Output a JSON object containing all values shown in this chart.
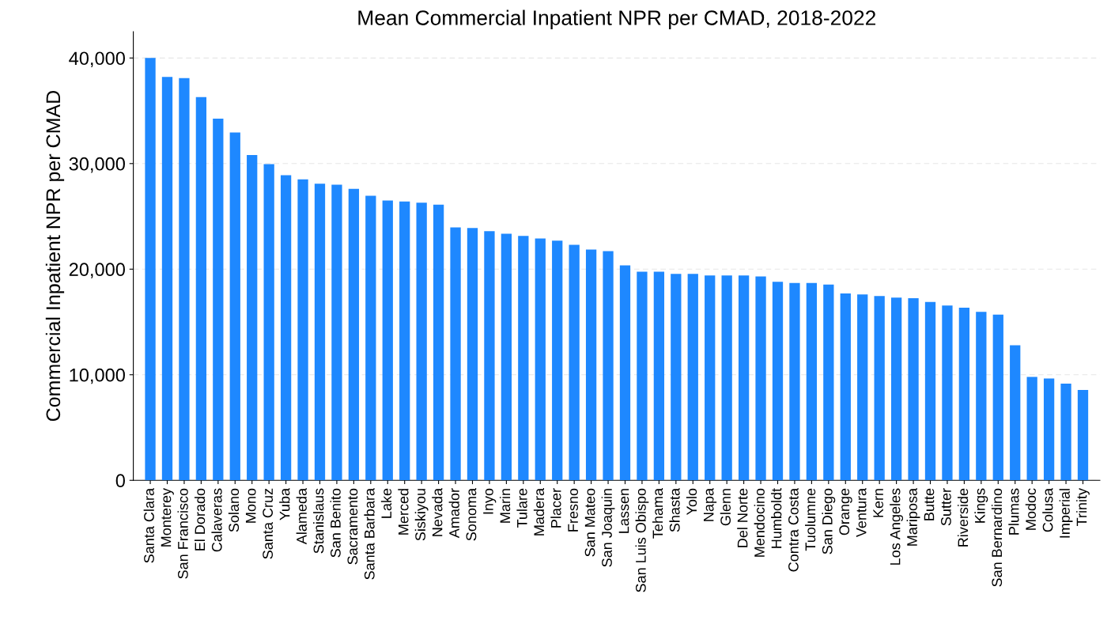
{
  "chart_data": {
    "type": "bar",
    "title": "Mean Commercial Inpatient NPR per CMAD, 2018-2022",
    "ylabel": "Commercial Inpatient NPR per CMAD",
    "categories": [
      "Santa Clara",
      "Monterey",
      "San Francisco",
      "El Dorado",
      "Calaveras",
      "Solano",
      "Mono",
      "Santa Cruz",
      "Yuba",
      "Alameda",
      "Stanislaus",
      "San Benito",
      "Sacramento",
      "Santa Barbara",
      "Lake",
      "Merced",
      "Siskiyou",
      "Nevada",
      "Amador",
      "Sonoma",
      "Inyo",
      "Marin",
      "Tulare",
      "Madera",
      "Placer",
      "Fresno",
      "San Mateo",
      "San Joaquin",
      "Lassen",
      "San Luis Obispo",
      "Tehama",
      "Shasta",
      "Yolo",
      "Napa",
      "Glenn",
      "Del Norte",
      "Mendocino",
      "Humboldt",
      "Contra Costa",
      "Tuolumne",
      "San Diego",
      "Orange",
      "Ventura",
      "Kern",
      "Los Angeles",
      "Mariposa",
      "Butte",
      "Sutter",
      "Riverside",
      "Kings",
      "San Bernardino",
      "Plumas",
      "Modoc",
      "Colusa",
      "Imperial",
      "Trinity"
    ],
    "values": [
      40000,
      38200,
      38100,
      36300,
      34250,
      32950,
      30800,
      29950,
      28900,
      28500,
      28100,
      28000,
      27600,
      26950,
      26500,
      26400,
      26300,
      26100,
      23950,
      23900,
      23600,
      23350,
      23150,
      22900,
      22700,
      22300,
      21850,
      21700,
      20350,
      19750,
      19750,
      19550,
      19550,
      19400,
      19400,
      19400,
      19300,
      18800,
      18700,
      18700,
      18550,
      17700,
      17600,
      17450,
      17300,
      17250,
      16900,
      16550,
      16350,
      15950,
      15700,
      12800,
      9800,
      9650,
      9150,
      8550
    ],
    "color": "#1e88ff",
    "ylim": [
      0,
      42500
    ],
    "yticks": [
      0,
      {
        "value": 10000,
        "label": "10,000"
      },
      {
        "value": 20000,
        "label": "20,000"
      },
      {
        "value": 30000,
        "label": "30,000"
      },
      {
        "value": 40000,
        "label": "40,000"
      }
    ],
    "grid": "y"
  }
}
